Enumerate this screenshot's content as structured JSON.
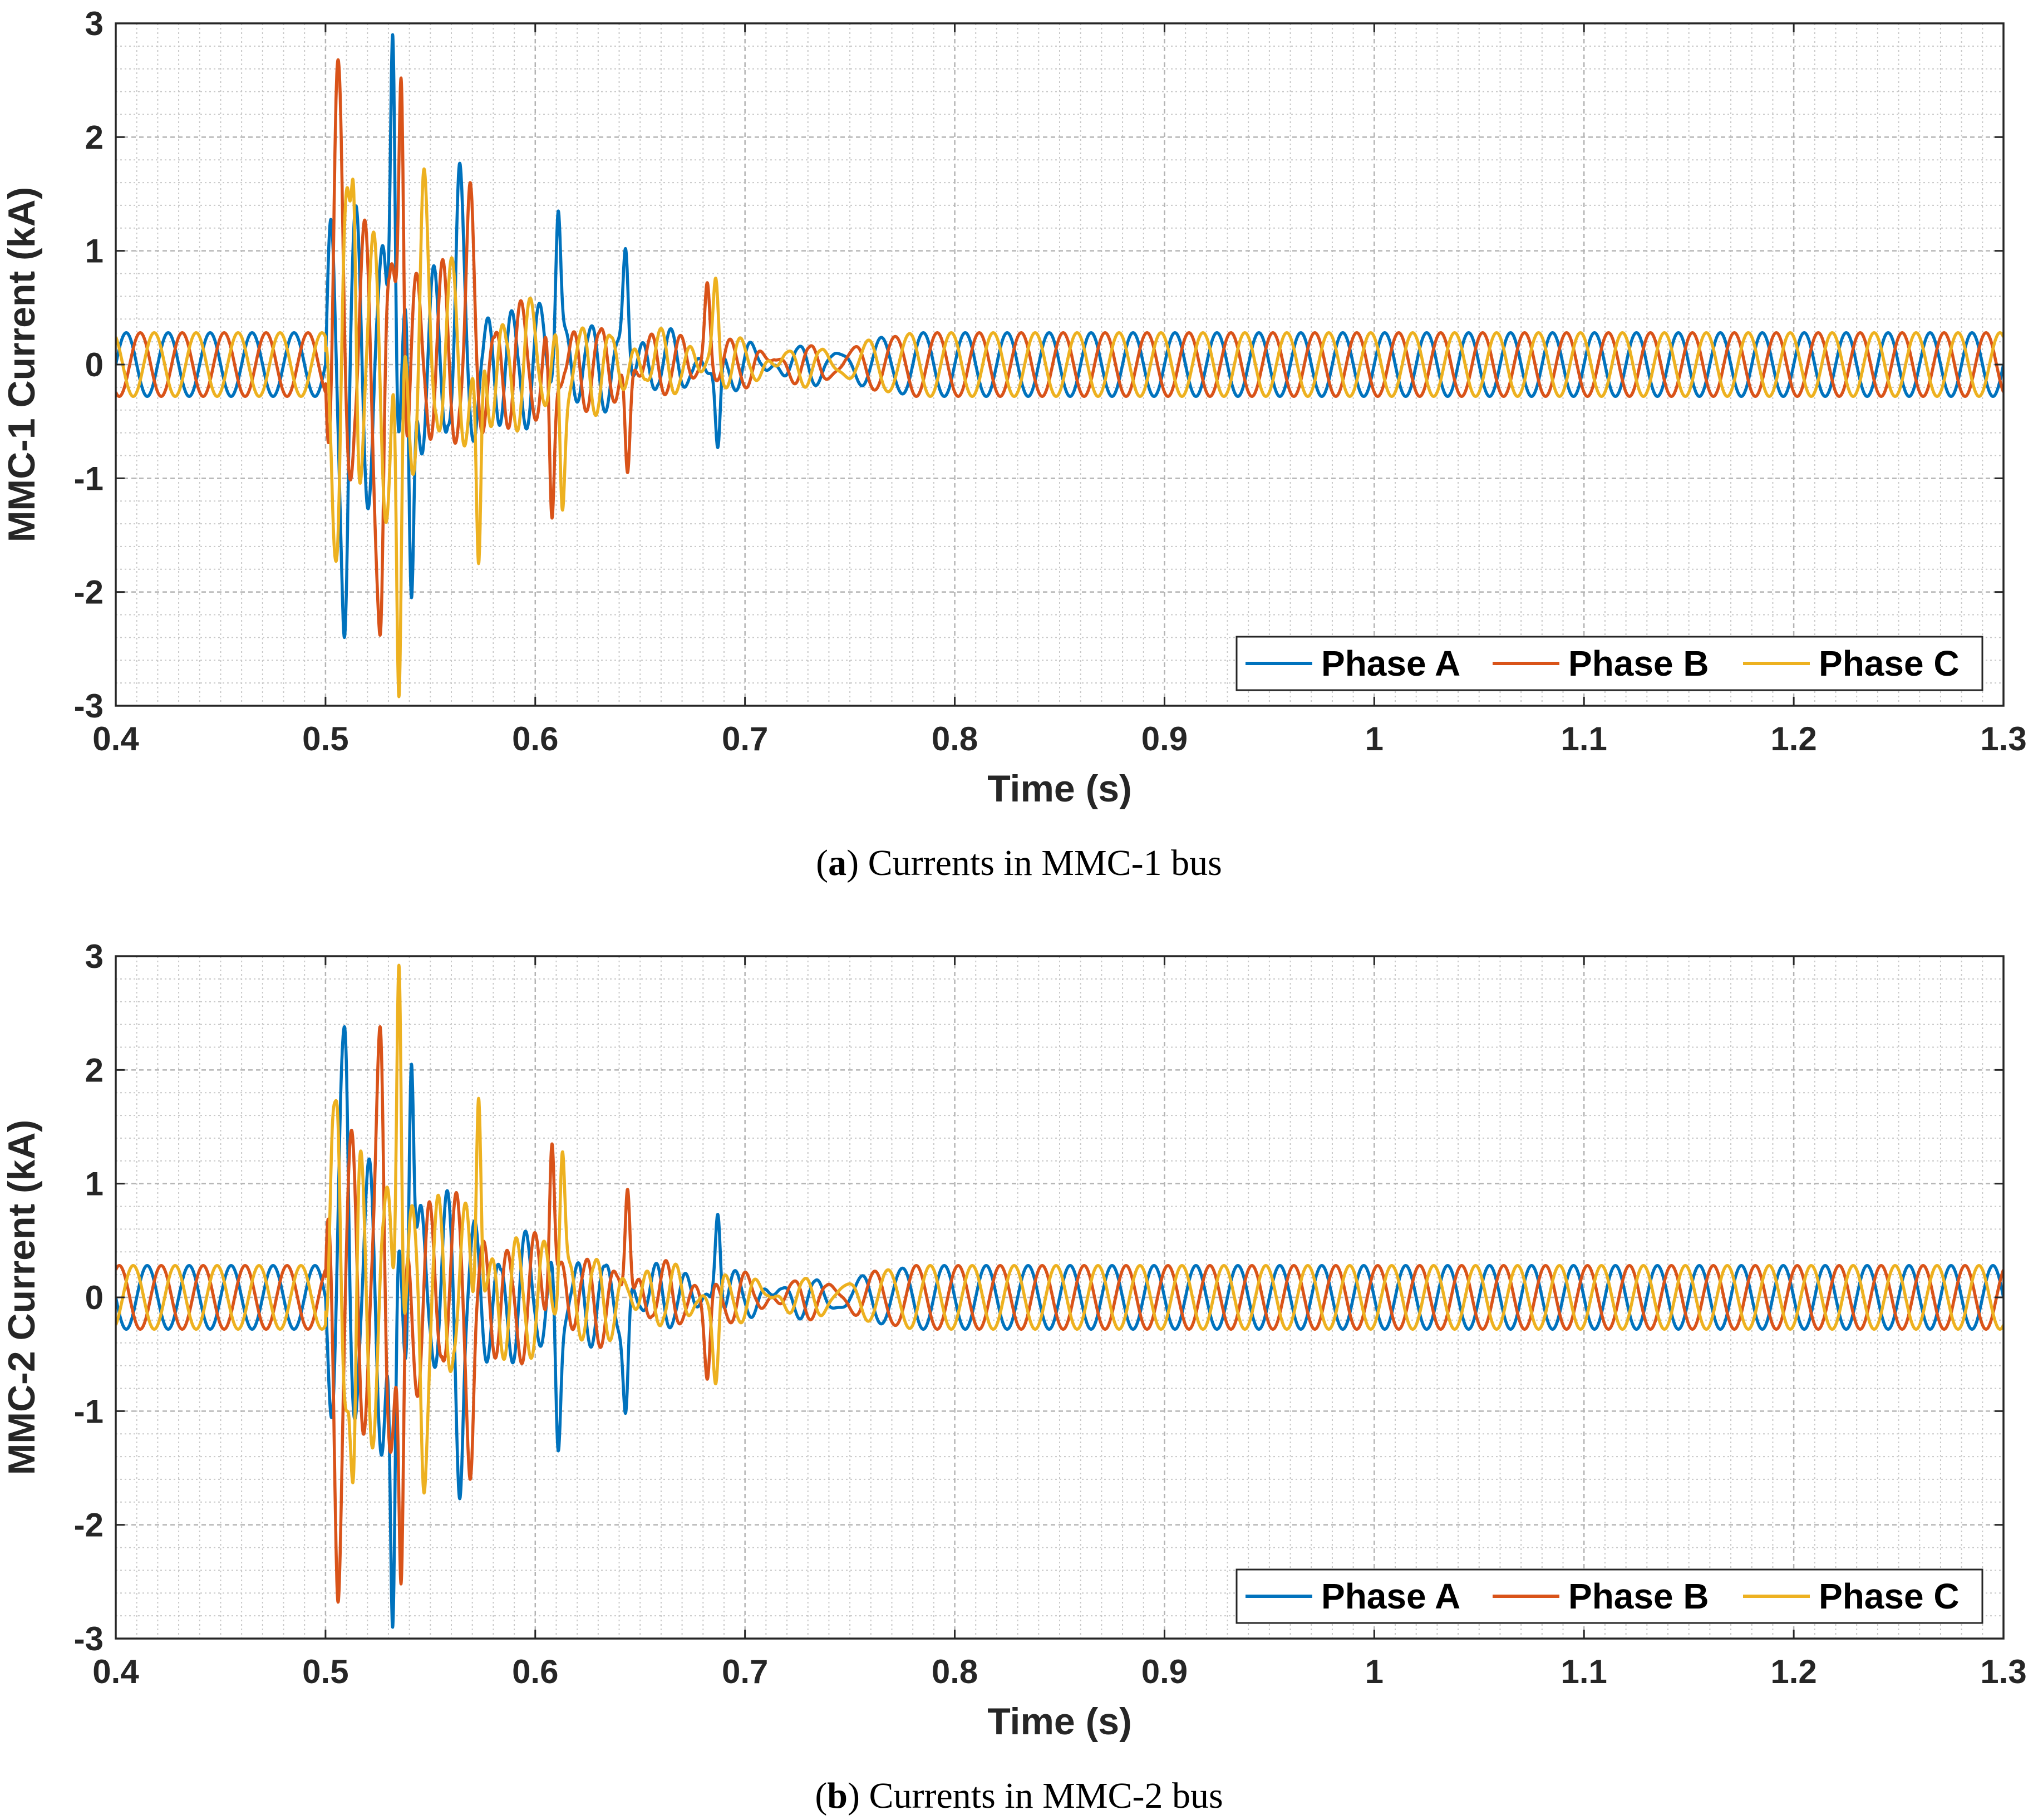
{
  "chart_data": [
    {
      "type": "line",
      "panel": "a",
      "caption_label": "a",
      "caption_text": "Currents in MMC-1 bus",
      "title": "",
      "xlabel": "Time (s)",
      "ylabel": "MMC-1 Current (kA)",
      "xlim": [
        0.4,
        1.3
      ],
      "ylim": [
        -3,
        3
      ],
      "xticks": [
        "0.4",
        "0.5",
        "0.6",
        "0.7",
        "0.8",
        "0.9",
        "1",
        "1.1",
        "1.2",
        "1.3"
      ],
      "yticks": [
        "-3",
        "-2",
        "-1",
        "0",
        "1",
        "2",
        "3"
      ],
      "grid": true,
      "minor_grid": true,
      "legend_position": "bottom-right",
      "frequency_hz": 50,
      "steady_amplitude_kA": 0.28,
      "fault_start_s": 0.5,
      "transient_end_s": 0.78,
      "series": [
        {
          "name": "Phase A",
          "label": "Phase A",
          "color": "#0072BD",
          "phase_deg": 0,
          "peaks": [
            {
              "t": 0.509,
              "v": -2.4
            },
            {
              "t": 0.532,
              "v": 2.9
            },
            {
              "t": 0.541,
              "v": -2.05
            },
            {
              "t": 0.564,
              "v": 1.77
            },
            {
              "t": 0.611,
              "v": 1.35
            },
            {
              "t": 0.643,
              "v": 1.02
            },
            {
              "t": 0.687,
              "v": -0.73
            }
          ]
        },
        {
          "name": "Phase B",
          "label": "Phase B",
          "color": "#D95319",
          "phase_deg": -120,
          "peaks": [
            {
              "t": 0.506,
              "v": 2.68
            },
            {
              "t": 0.526,
              "v": -2.38
            },
            {
              "t": 0.536,
              "v": 2.52
            },
            {
              "t": 0.569,
              "v": 1.6
            },
            {
              "t": 0.608,
              "v": -1.35
            },
            {
              "t": 0.644,
              "v": -0.95
            },
            {
              "t": 0.682,
              "v": 0.72
            }
          ]
        },
        {
          "name": "Phase C",
          "label": "Phase C",
          "color": "#EDB120",
          "phase_deg": 120,
          "peaks": [
            {
              "t": 0.505,
              "v": -1.73
            },
            {
              "t": 0.513,
              "v": 1.63
            },
            {
              "t": 0.535,
              "v": -2.92
            },
            {
              "t": 0.547,
              "v": 1.72
            },
            {
              "t": 0.573,
              "v": -1.75
            },
            {
              "t": 0.613,
              "v": -1.28
            },
            {
              "t": 0.686,
              "v": 0.76
            }
          ]
        }
      ]
    },
    {
      "type": "line",
      "panel": "b",
      "caption_label": "b",
      "caption_text": "Currents in MMC-2 bus",
      "title": "",
      "xlabel": "Time (s)",
      "ylabel": "MMC-2 Current (kA)",
      "xlim": [
        0.4,
        1.3
      ],
      "ylim": [
        -3,
        3
      ],
      "xticks": [
        "0.4",
        "0.5",
        "0.6",
        "0.7",
        "0.8",
        "0.9",
        "1",
        "1.1",
        "1.2",
        "1.3"
      ],
      "yticks": [
        "-3",
        "-2",
        "-1",
        "0",
        "1",
        "2",
        "3"
      ],
      "grid": true,
      "minor_grid": true,
      "legend_position": "bottom-right",
      "frequency_hz": 50,
      "steady_amplitude_kA": 0.28,
      "fault_start_s": 0.5,
      "transient_end_s": 0.78,
      "series": [
        {
          "name": "Phase A",
          "label": "Phase A",
          "color": "#0072BD",
          "phase_deg": 180,
          "peaks": [
            {
              "t": 0.509,
              "v": 2.38
            },
            {
              "t": 0.532,
              "v": -2.9
            },
            {
              "t": 0.541,
              "v": 2.05
            },
            {
              "t": 0.564,
              "v": -1.77
            },
            {
              "t": 0.611,
              "v": -1.35
            },
            {
              "t": 0.643,
              "v": -1.02
            },
            {
              "t": 0.687,
              "v": 0.73
            }
          ]
        },
        {
          "name": "Phase B",
          "label": "Phase B",
          "color": "#D95319",
          "phase_deg": 60,
          "peaks": [
            {
              "t": 0.506,
              "v": -2.68
            },
            {
              "t": 0.526,
              "v": 2.38
            },
            {
              "t": 0.536,
              "v": -2.52
            },
            {
              "t": 0.569,
              "v": -1.6
            },
            {
              "t": 0.608,
              "v": 1.35
            },
            {
              "t": 0.644,
              "v": 0.95
            },
            {
              "t": 0.682,
              "v": -0.72
            }
          ]
        },
        {
          "name": "Phase C",
          "label": "Phase C",
          "color": "#EDB120",
          "phase_deg": -60,
          "peaks": [
            {
              "t": 0.505,
              "v": 1.73
            },
            {
              "t": 0.513,
              "v": -1.63
            },
            {
              "t": 0.535,
              "v": 2.92
            },
            {
              "t": 0.547,
              "v": -1.72
            },
            {
              "t": 0.573,
              "v": 1.75
            },
            {
              "t": 0.613,
              "v": 1.28
            },
            {
              "t": 0.686,
              "v": -0.76
            }
          ]
        }
      ]
    }
  ]
}
